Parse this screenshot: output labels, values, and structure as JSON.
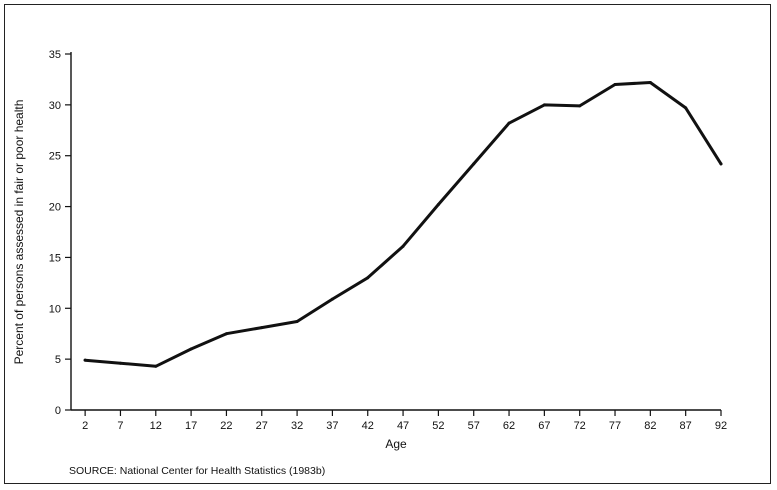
{
  "chart_data": {
    "type": "line",
    "title": "",
    "xlabel": "Age",
    "ylabel": "Percent of persons assessed in fair or poor health",
    "x_ticks": [
      "2",
      "7",
      "12",
      "17",
      "22",
      "27",
      "32",
      "37",
      "42",
      "47",
      "52",
      "57",
      "62",
      "67",
      "72",
      "77",
      "82",
      "87",
      "92"
    ],
    "y_ticks": [
      "0",
      "5",
      "10",
      "15",
      "20",
      "25",
      "30",
      "35"
    ],
    "xlim": [
      0,
      92
    ],
    "ylim": [
      0,
      35
    ],
    "grid": false,
    "legend": "none",
    "series": [
      {
        "color": "#111111",
        "points": [
          {
            "x": 2,
            "y": 4.9
          },
          {
            "x": 7,
            "y": 4.6
          },
          {
            "x": 12,
            "y": 4.3
          },
          {
            "x": 17,
            "y": 6.0
          },
          {
            "x": 22,
            "y": 7.5
          },
          {
            "x": 27,
            "y": 8.1
          },
          {
            "x": 32,
            "y": 8.7
          },
          {
            "x": 37,
            "y": 10.9
          },
          {
            "x": 42,
            "y": 13.0
          },
          {
            "x": 47,
            "y": 16.1
          },
          {
            "x": 52,
            "y": 20.2
          },
          {
            "x": 57,
            "y": 24.2
          },
          {
            "x": 62,
            "y": 28.2
          },
          {
            "x": 67,
            "y": 30.0
          },
          {
            "x": 72,
            "y": 29.9
          },
          {
            "x": 77,
            "y": 32.0
          },
          {
            "x": 82,
            "y": 32.2
          },
          {
            "x": 87,
            "y": 29.7
          },
          {
            "x": 92,
            "y": 24.2
          }
        ]
      }
    ]
  },
  "footer": {
    "source": "SOURCE: National Center for Health Statistics (1983b)"
  }
}
